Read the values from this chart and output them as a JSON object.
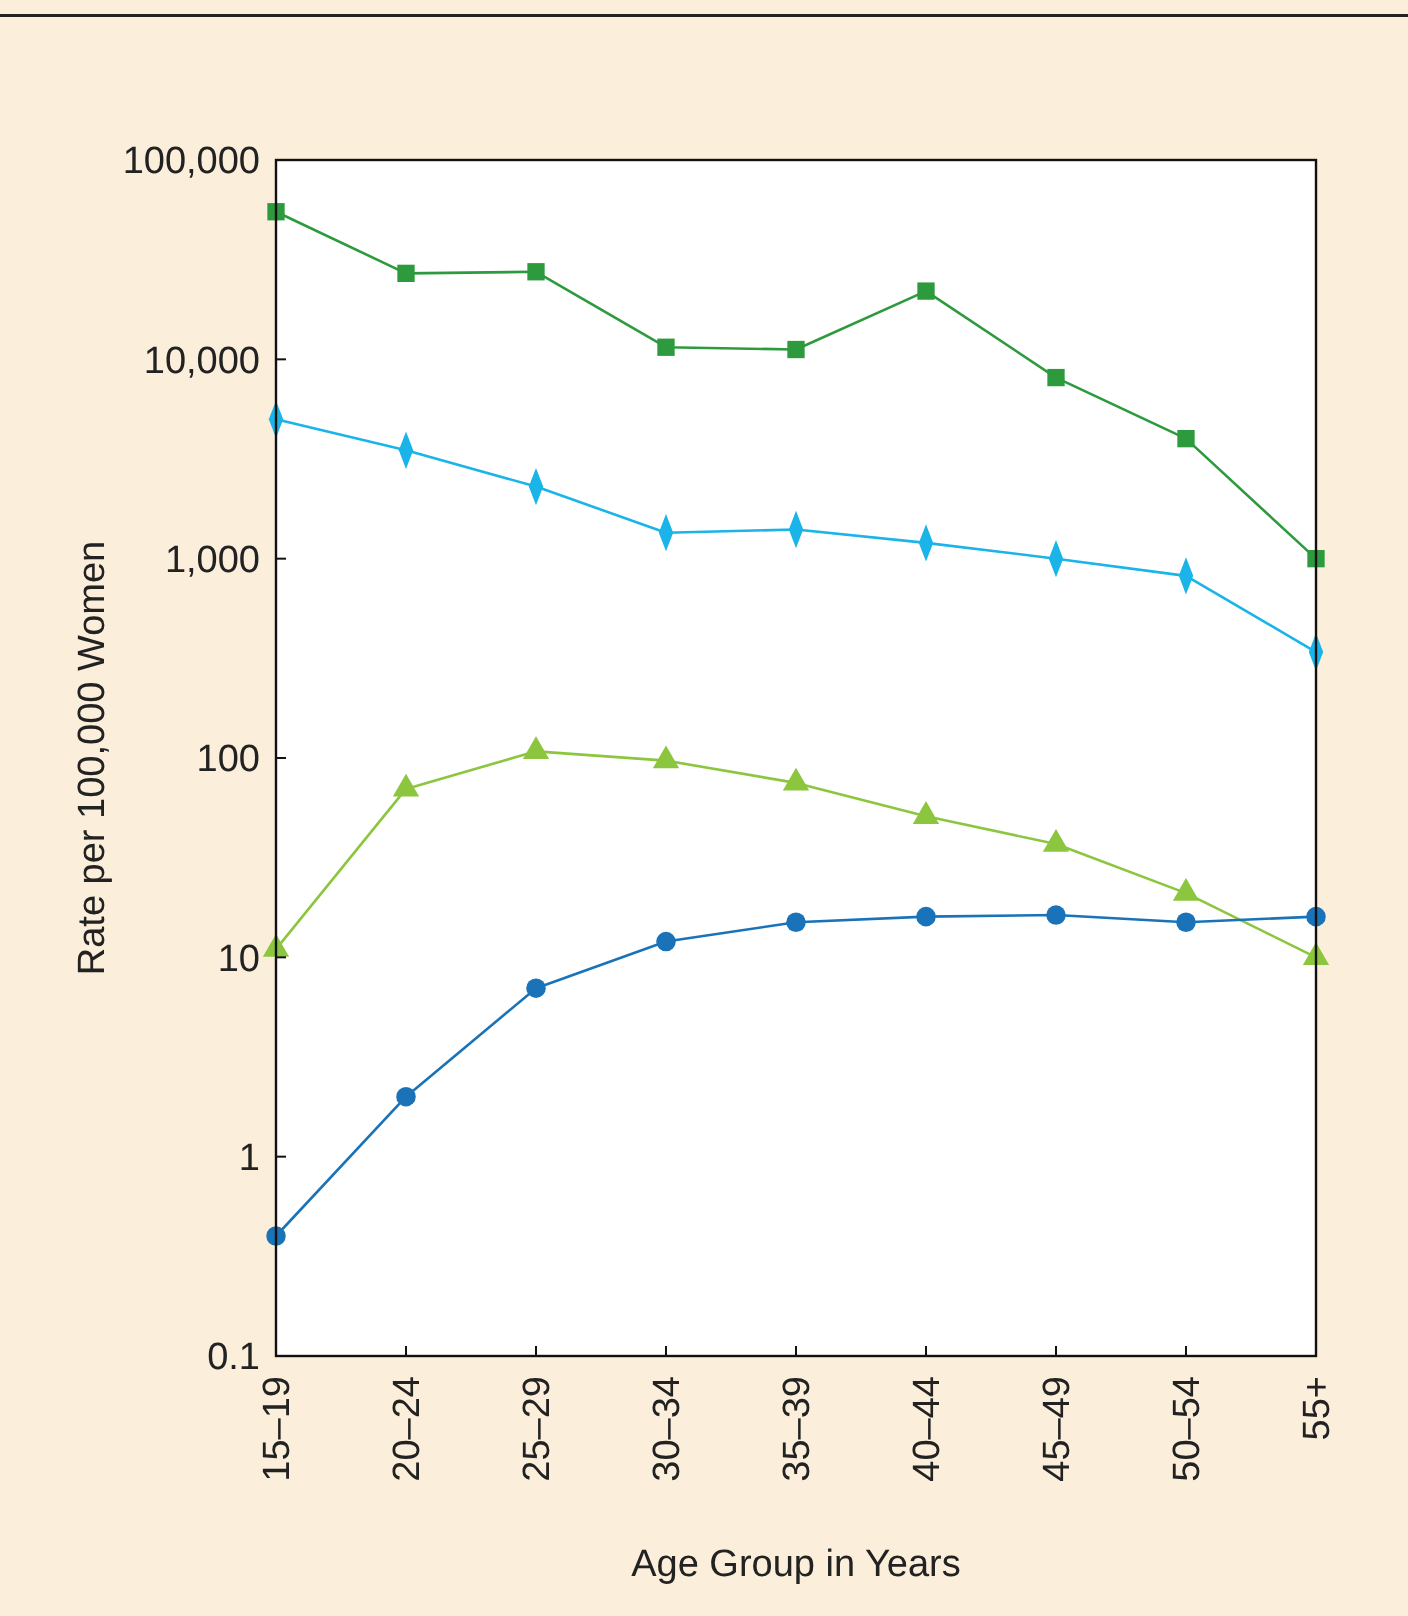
{
  "chart_data": {
    "type": "line",
    "xlabel": "Age Group in Years",
    "ylabel": "Rate per 100,000 Women",
    "categories": [
      "15–19",
      "20–24",
      "25–29",
      "30–34",
      "35–39",
      "40–44",
      "45–49",
      "50–54",
      "55+"
    ],
    "log": true,
    "grid": false,
    "ylim": [
      0.1,
      100000
    ],
    "yticks": [
      0.1,
      1,
      10,
      100,
      {
        "value": 1000,
        "label": "1,000"
      },
      {
        "value": 10000,
        "label": "10,000"
      },
      {
        "value": 100000,
        "label": "100,000"
      }
    ],
    "series": [
      {
        "color": "#2e9a3e",
        "marker": "square",
        "values": [
          55000,
          27000,
          27500,
          11500,
          11200,
          22000,
          8100,
          4000,
          1000
        ]
      },
      {
        "color": "#1ab4e8",
        "marker": "diamond",
        "values": [
          5000,
          3500,
          2300,
          1350,
          1400,
          1200,
          1000,
          820,
          340
        ]
      },
      {
        "color": "#8cc63f",
        "marker": "triangle",
        "values": [
          11,
          70,
          108,
          97,
          75,
          51,
          37,
          21,
          10
        ]
      },
      {
        "color": "#1a73b8",
        "marker": "circle",
        "values": [
          0.4,
          2,
          7,
          12,
          15,
          16,
          16.3,
          15,
          16
        ]
      }
    ]
  }
}
